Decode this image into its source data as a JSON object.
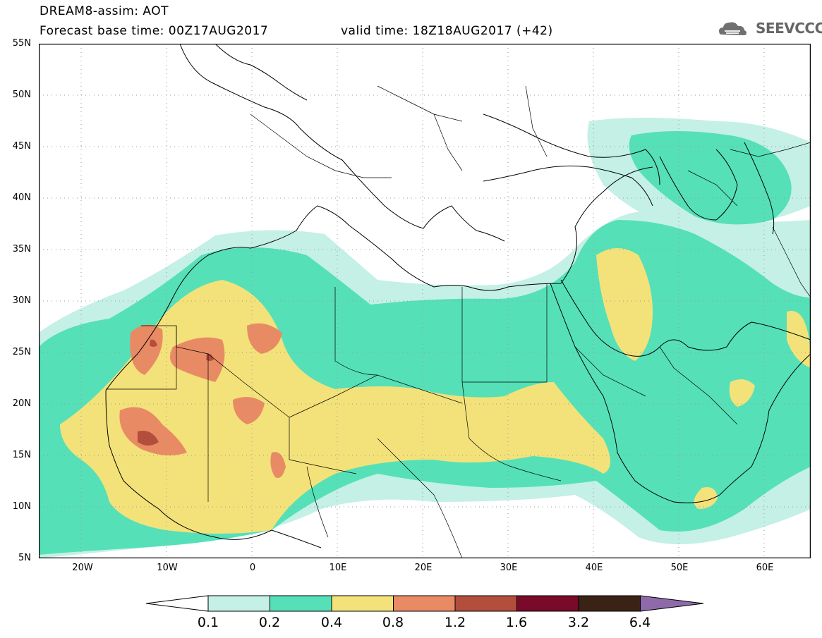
{
  "header": {
    "title": "DREAM8-assim: AOT",
    "base_time": "Forecast base time: 00Z17AUG2017",
    "valid_time": "valid time: 18Z18AUG2017 (+42)",
    "logo_text": "SEEVCCC"
  },
  "map": {
    "variable": "AOT",
    "lon_range": [
      -25,
      65
    ],
    "lat_range": [
      5,
      55
    ],
    "lat_labels": [
      "55N",
      "50N",
      "45N",
      "40N",
      "35N",
      "30N",
      "25N",
      "20N",
      "15N",
      "10N",
      "5N"
    ],
    "lon_labels": [
      "20W",
      "10W",
      "0",
      "10E",
      "20E",
      "30E",
      "40E",
      "50E",
      "60E"
    ],
    "grid": true
  },
  "colorbar": {
    "labels": [
      "0.1",
      "0.2",
      "0.4",
      "0.8",
      "1.2",
      "1.6",
      "3.2",
      "6.4"
    ],
    "colors": [
      "#ffffff",
      "#c4f0e6",
      "#55e0b8",
      "#f3e27a",
      "#e88b65",
      "#b34e3c",
      "#7a0a2a",
      "#3a2315",
      "#8f6aaa"
    ]
  }
}
